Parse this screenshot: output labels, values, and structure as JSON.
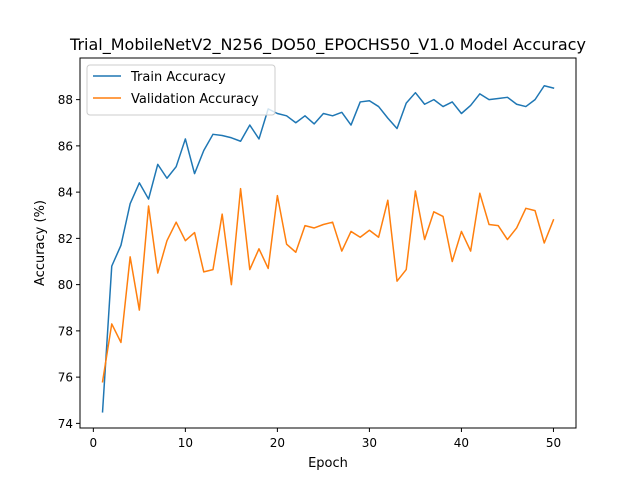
{
  "chart_data": {
    "type": "line",
    "title": "Trial_MobileNetV2_N256_DO50_EPOCHS50_V1.0 Model Accuracy",
    "xlabel": "Epoch",
    "ylabel": "Accuracy (%)",
    "xlim": [
      -1.45,
      52.45
    ],
    "ylim": [
      73.8,
      89.8
    ],
    "xticks": [
      0,
      10,
      20,
      30,
      40,
      50
    ],
    "yticks": [
      74,
      76,
      78,
      80,
      82,
      84,
      86,
      88
    ],
    "grid": false,
    "legend_position": "top-left",
    "x": [
      1,
      2,
      3,
      4,
      5,
      6,
      7,
      8,
      9,
      10,
      11,
      12,
      13,
      14,
      15,
      16,
      17,
      18,
      19,
      20,
      21,
      22,
      23,
      24,
      25,
      26,
      27,
      28,
      29,
      30,
      31,
      32,
      33,
      34,
      35,
      36,
      37,
      38,
      39,
      40,
      41,
      42,
      43,
      44,
      45,
      46,
      47,
      48,
      49,
      50
    ],
    "series": [
      {
        "name": "Train Accuracy",
        "color": "#1f77b4",
        "values": [
          74.5,
          80.8,
          81.7,
          83.5,
          84.4,
          83.7,
          85.2,
          84.6,
          85.1,
          86.3,
          84.8,
          85.8,
          86.5,
          86.45,
          86.35,
          86.2,
          86.9,
          86.3,
          87.6,
          87.4,
          87.3,
          87.0,
          87.3,
          86.95,
          87.4,
          87.3,
          87.45,
          86.9,
          87.9,
          87.95,
          87.7,
          87.2,
          86.75,
          87.85,
          88.3,
          87.8,
          88.0,
          87.7,
          87.9,
          87.4,
          87.75,
          88.25,
          88.0,
          88.05,
          88.1,
          87.8,
          87.7,
          88.0,
          88.6,
          88.5
        ]
      },
      {
        "name": "Validation Accuracy",
        "color": "#ff7f0e",
        "values": [
          75.8,
          78.3,
          77.5,
          81.2,
          78.9,
          83.4,
          80.5,
          81.9,
          82.7,
          81.9,
          82.25,
          80.55,
          80.65,
          83.05,
          80.0,
          84.15,
          80.65,
          81.55,
          80.7,
          83.85,
          81.75,
          81.4,
          82.55,
          82.45,
          82.6,
          82.7,
          81.45,
          82.3,
          82.05,
          82.35,
          82.05,
          83.65,
          80.15,
          80.65,
          84.05,
          81.95,
          83.15,
          82.95,
          81.0,
          82.3,
          81.45,
          83.95,
          82.6,
          82.55,
          81.95,
          82.45,
          83.3,
          83.2,
          81.8,
          82.8
        ]
      }
    ]
  }
}
